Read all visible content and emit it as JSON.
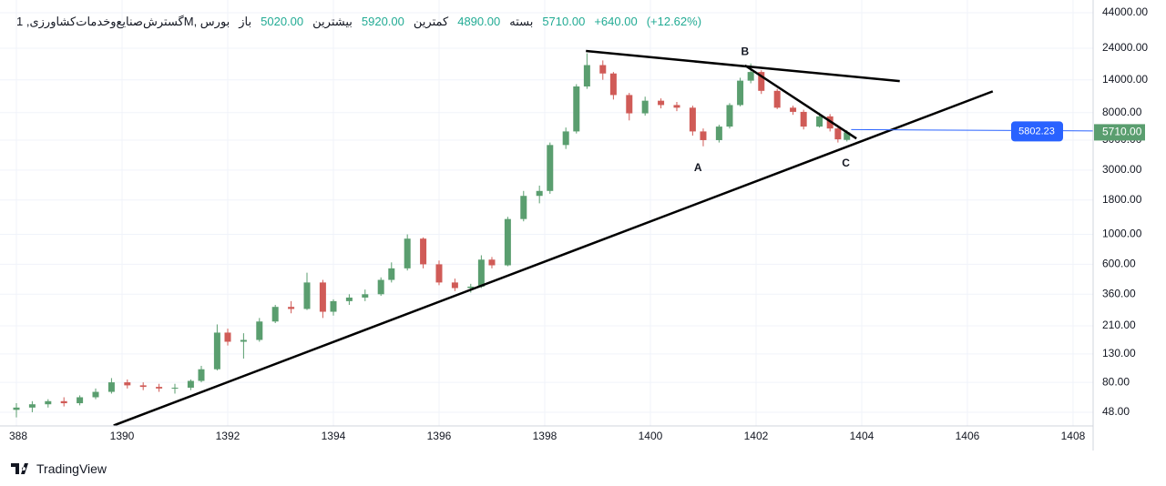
{
  "header": {
    "symbol": "گسترش‌صنایع‌وخدمات‌کشاورزی, 1M, بورس",
    "fields": [
      {
        "name": "باز",
        "value": {
          "value": 5020,
          "label": "5020.00"
        }
      },
      {
        "name": "بیشترین",
        "value": {
          "value": 5920,
          "label": "5920.00"
        }
      },
      {
        "name": "کمترین",
        "value": {
          "value": 4890,
          "label": "4890.00"
        }
      },
      {
        "name": "بسته",
        "value": {
          "value": 5710,
          "label": "5710.00"
        }
      }
    ],
    "change": {
      "value": 640,
      "label": "+640.00"
    },
    "change_pct": {
      "value": 12.62,
      "label": "(+12.62%)"
    }
  },
  "chart_data": {
    "type": "candlestick",
    "log_scale": true,
    "grid": true,
    "up_color": "#5a9e6f",
    "down_color": "#d05b57",
    "x": [
      1388.0,
      1388.3,
      1388.6,
      1388.9,
      1389.2,
      1389.5,
      1389.8,
      1390.1,
      1390.4,
      1390.7,
      1391.0,
      1391.3,
      1391.5,
      1391.8,
      1392.0,
      1392.3,
      1392.6,
      1392.9,
      1393.2,
      1393.5,
      1393.8,
      1394.0,
      1394.3,
      1394.6,
      1394.9,
      1395.1,
      1395.4,
      1395.7,
      1396.0,
      1396.3,
      1396.6,
      1396.8,
      1397.0,
      1397.3,
      1397.6,
      1397.9,
      1398.1,
      1398.4,
      1398.6,
      1398.8,
      1399.1,
      1399.3,
      1399.6,
      1399.9,
      1400.2,
      1400.5,
      1400.8,
      1401.0,
      1401.3,
      1401.5,
      1401.7,
      1401.9,
      1402.1,
      1402.4,
      1402.7,
      1402.9,
      1403.2,
      1403.4,
      1403.55,
      1403.72
    ],
    "open": [
      50,
      52,
      55,
      58,
      56,
      62,
      68,
      80,
      76,
      74,
      72,
      73,
      82,
      100,
      187,
      160,
      165,
      226,
      290,
      280,
      440,
      267,
      320,
      340,
      360,
      460,
      560,
      930,
      600,
      440,
      400,
      410,
      650,
      590,
      1300,
      1930,
      2100,
      4600,
      5800,
      12500,
      18000,
      15600,
      10800,
      7900,
      9800,
      9100,
      8700,
      5800,
      5000,
      6300,
      9100,
      13800,
      16000,
      11600,
      8700,
      8100,
      6300,
      7500,
      6100,
      5020
    ],
    "high": [
      56,
      58,
      60,
      62,
      64,
      72,
      86,
      84,
      80,
      78,
      78,
      84,
      106,
      215,
      200,
      185,
      240,
      300,
      320,
      520,
      460,
      330,
      360,
      390,
      480,
      620,
      1000,
      950,
      640,
      470,
      430,
      700,
      680,
      1350,
      2100,
      2300,
      4800,
      6200,
      13000,
      22000,
      19500,
      16000,
      11200,
      10500,
      10200,
      9600,
      9000,
      6100,
      6500,
      9400,
      14500,
      18500,
      16500,
      12000,
      9000,
      8400,
      8000,
      7800,
      6200,
      5920
    ],
    "low": [
      44,
      48,
      52,
      53,
      54,
      60,
      66,
      72,
      70,
      68,
      66,
      70,
      80,
      98,
      150,
      120,
      160,
      220,
      260,
      275,
      240,
      250,
      300,
      320,
      350,
      440,
      540,
      560,
      420,
      380,
      370,
      400,
      560,
      580,
      1250,
      1700,
      2000,
      4300,
      5600,
      12000,
      14000,
      10000,
      7000,
      7600,
      8600,
      8200,
      5400,
      4500,
      4800,
      6100,
      8900,
      13200,
      11000,
      8500,
      7700,
      6000,
      6200,
      5800,
      4800,
      4890
    ],
    "close": [
      52,
      55,
      58,
      56,
      62,
      68,
      80,
      76,
      74,
      72,
      73,
      82,
      100,
      187,
      160,
      165,
      226,
      290,
      280,
      440,
      267,
      320,
      340,
      360,
      460,
      560,
      930,
      600,
      440,
      400,
      410,
      650,
      590,
      1300,
      1930,
      2100,
      4600,
      5800,
      12500,
      18000,
      15600,
      10800,
      7900,
      9800,
      9100,
      8700,
      5800,
      5000,
      6300,
      9100,
      13800,
      16000,
      11600,
      8700,
      8100,
      6300,
      7500,
      6100,
      5070,
      5710
    ],
    "last_label": {
      "value": 5710,
      "label": "5710.00"
    },
    "price_line": {
      "x": [
        1403.8,
        1410
      ],
      "value": 5802.23,
      "label": "5802.23"
    },
    "trend_lines": [
      {
        "x": [
          1398.78,
          1404.72
        ],
        "y": [
          22900,
          13700
        ]
      },
      {
        "x": [
          1401.79,
          1403.9
        ],
        "y": [
          17900,
          5140
        ]
      },
      {
        "x": [
          1389.84,
          1406.48
        ],
        "y": [
          38.3,
          11500
        ]
      }
    ],
    "annotations": [
      {
        "text": "A",
        "x": 1400.9,
        "y": 3100
      },
      {
        "text": "B",
        "x": 1401.79,
        "y": 22500
      },
      {
        "text": "C",
        "x": 1403.7,
        "y": 3350
      }
    ],
    "xlim": [
      1388,
      1408.38
    ],
    "ylim": [
      38,
      54700
    ],
    "xticks": [
      {
        "value": 1388,
        "label": "388"
      },
      1390,
      1392,
      1394,
      1396,
      1398,
      1400,
      1402,
      1404,
      1406,
      1408
    ],
    "yticks": [
      {
        "value": 44000,
        "label": "44000.00"
      },
      {
        "value": 24000,
        "label": "24000.00"
      },
      {
        "value": 14000,
        "label": "14000.00"
      },
      {
        "value": 8000,
        "label": "8000.00"
      },
      {
        "value": 5000,
        "label": "5000.00"
      },
      {
        "value": 3000,
        "label": "3000.00"
      },
      {
        "value": 1800,
        "label": "1800.00"
      },
      {
        "value": 1000,
        "label": "1000.00"
      },
      {
        "value": 600,
        "label": "600.00"
      },
      {
        "value": 360,
        "label": "360.00"
      },
      {
        "value": 210,
        "label": "210.00"
      },
      {
        "value": 130,
        "label": "130.00"
      },
      {
        "value": 80,
        "label": "80.00"
      },
      {
        "value": 48,
        "label": "48.00"
      }
    ]
  },
  "footer": {
    "brand": "TradingView"
  }
}
